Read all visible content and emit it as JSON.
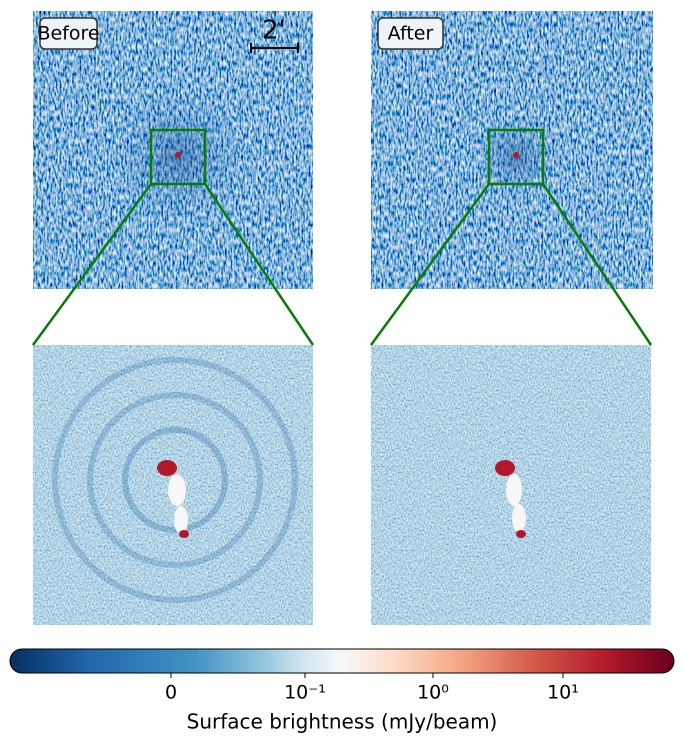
{
  "panels": [
    {
      "label": "Before"
    },
    {
      "label": "After"
    }
  ],
  "scale_bar": {
    "label": "2'"
  },
  "colorbar": {
    "label": "Surface brightness (mJy/beam)",
    "tick_labels": [
      "0",
      "10⁻¹",
      "10⁰",
      "10¹"
    ]
  }
}
